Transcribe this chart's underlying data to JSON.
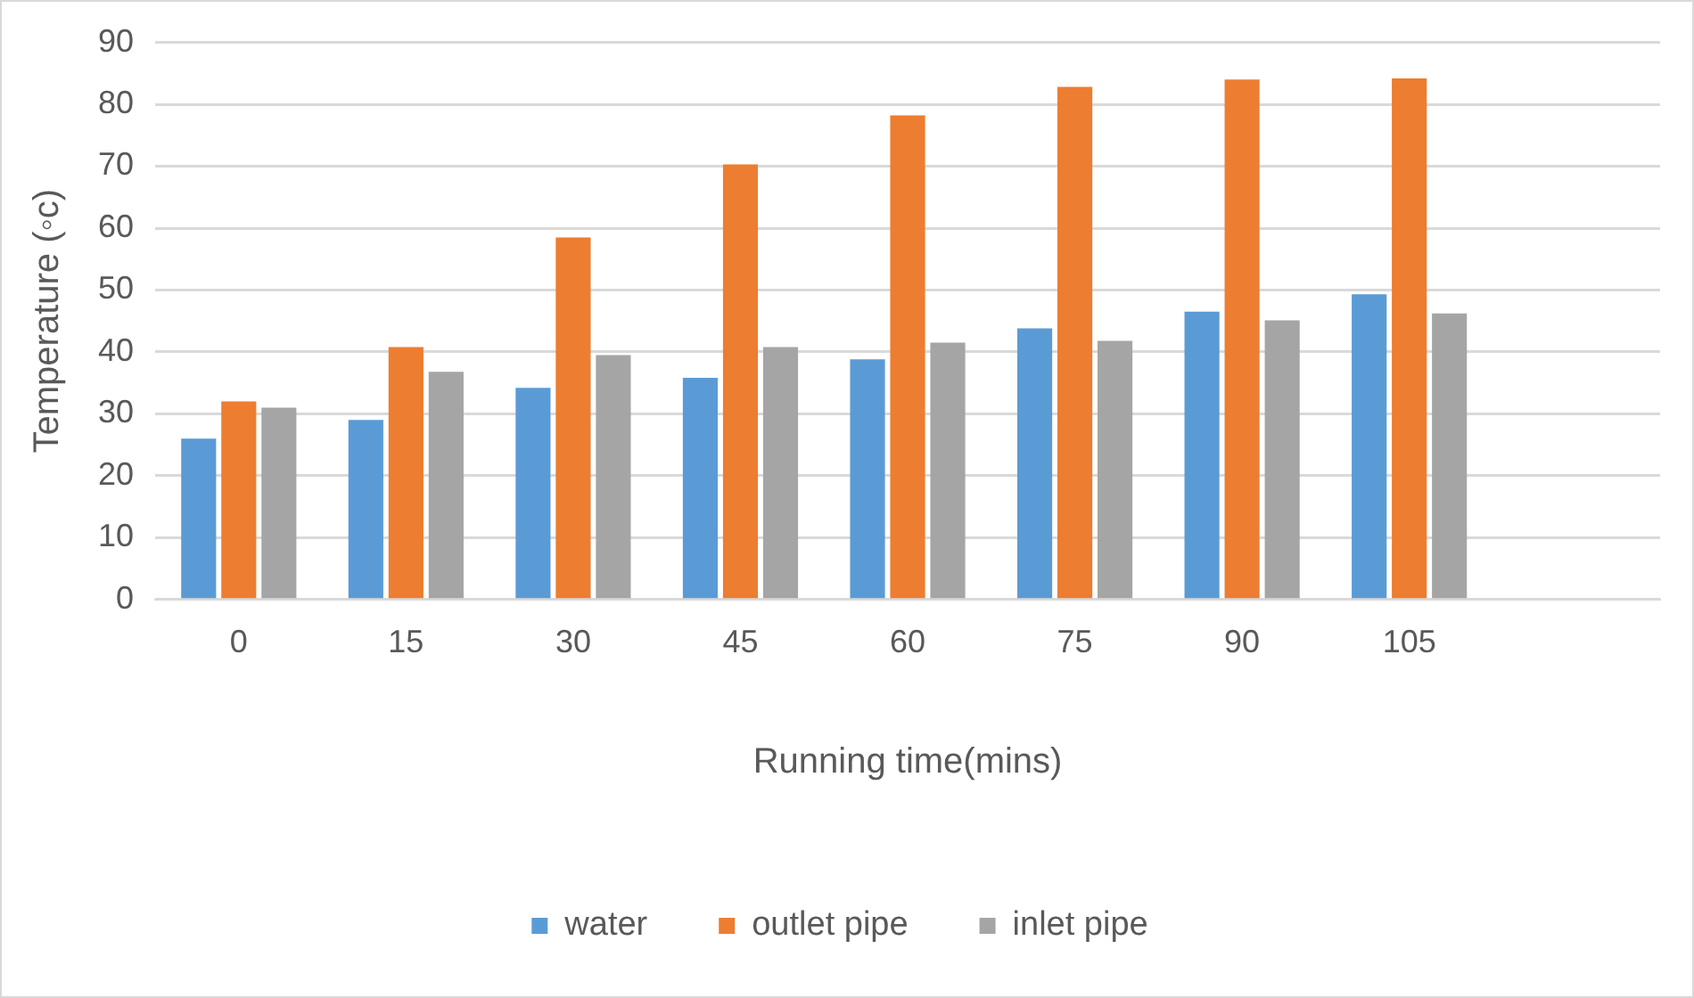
{
  "chart_data": {
    "type": "bar",
    "xlabel": "Running time(mins)",
    "ylabel": "Temperature (◦c)",
    "categories": [
      "0",
      "15",
      "30",
      "45",
      "60",
      "75",
      "90",
      "105",
      null
    ],
    "series": [
      {
        "name": "water",
        "color": "#5b9bd5",
        "values": [
          26,
          29,
          34.2,
          35.8,
          38.8,
          43.8,
          46.5,
          49.3,
          null
        ]
      },
      {
        "name": "outlet pipe",
        "color": "#ed7d31",
        "values": [
          32,
          40.8,
          58.5,
          70.3,
          78.2,
          82.8,
          84,
          84.2,
          null
        ]
      },
      {
        "name": "inlet pipe",
        "color": "#a5a5a5",
        "values": [
          31,
          36.8,
          39.5,
          40.8,
          41.5,
          41.8,
          45.1,
          46.2,
          null
        ]
      }
    ],
    "ylim": [
      0,
      90
    ],
    "yticks": [
      0,
      10,
      20,
      30,
      40,
      50,
      60,
      70,
      80,
      90
    ],
    "grid": "y",
    "legend": "bottom"
  }
}
